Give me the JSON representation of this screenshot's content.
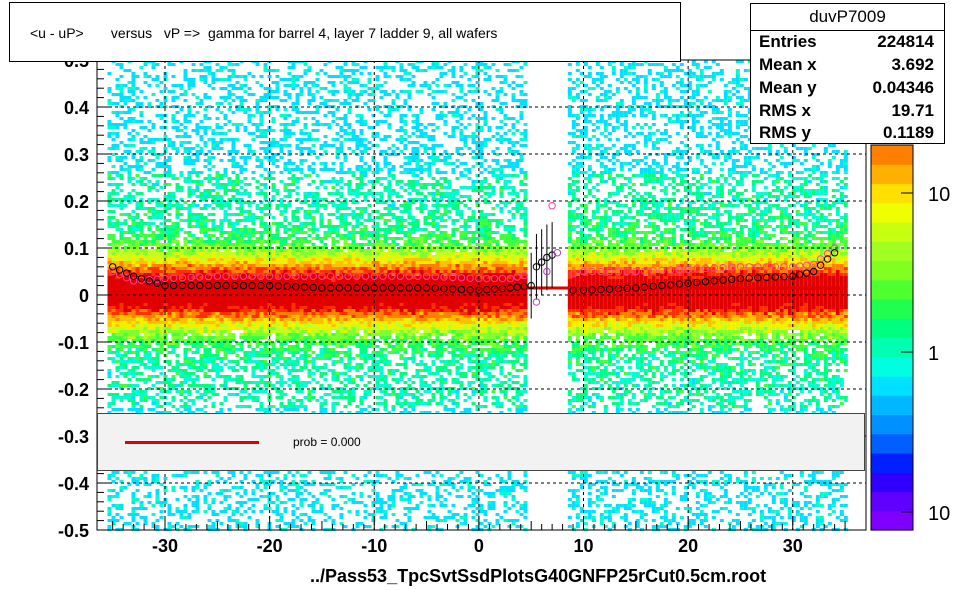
{
  "title": "<u - uP>       versus   vP =>  gamma for barrel 4, layer 7 ladder 9, all wafers",
  "stats": {
    "name": "duvP7009",
    "rows": [
      {
        "label": "Entries",
        "value": "224814"
      },
      {
        "label": "Mean x",
        "value": "3.692"
      },
      {
        "label": "Mean y",
        "value": "0.04346"
      },
      {
        "label": "RMS x",
        "value": "19.71"
      },
      {
        "label": "RMS y",
        "value": "0.1189"
      }
    ]
  },
  "legend": {
    "fit_label": "prob = 0.000"
  },
  "footer": "../Pass53_TpcSvtSsdPlotsG40GNFP25rCut0.5cm.root",
  "colors": {
    "fit": "#e00000",
    "profile_open": "#000000",
    "profile_pink": "#ff40a0",
    "profile_violet": "#b040d0"
  },
  "chart_data": {
    "type": "heatmap",
    "xlabel": "",
    "ylabel": "",
    "xlim": [
      -36.5,
      37.0
    ],
    "ylim": [
      -0.5,
      0.5
    ],
    "x_ticks": [
      -30,
      -20,
      -10,
      0,
      10,
      20,
      30
    ],
    "y_ticks": [
      -0.5,
      -0.4,
      -0.3,
      -0.2,
      -0.1,
      0,
      0.1,
      0.2,
      0.3,
      0.4,
      0.5
    ],
    "y_tick_labels": [
      "-0.5",
      "-0.4",
      "-0.3",
      "-0.2",
      "-0.1",
      "0",
      "0.1",
      "0.2",
      "0.3",
      "0.4",
      "0.5"
    ],
    "colorbar": {
      "scale": "log",
      "tick_labels": [
        "10",
        "1",
        "10"
      ]
    },
    "occupied_x_ranges": [
      [
        -35.5,
        4.5
      ],
      [
        8.5,
        35.0
      ]
    ],
    "occupied_y_range": [
      -0.5,
      0.5
    ],
    "fit": {
      "x_range": [
        -35.5,
        35.0
      ],
      "y": 0.015
    },
    "profile_black": {
      "x": [
        -35,
        -33,
        -30,
        -25,
        -20,
        -15,
        -10,
        -5,
        0,
        3,
        5,
        5.5,
        6,
        6.5,
        7,
        9,
        10,
        15,
        20,
        25,
        30,
        32,
        34
      ],
      "y": [
        0.06,
        0.04,
        0.02,
        0.02,
        0.02,
        0.015,
        0.015,
        0.015,
        0.01,
        0.015,
        0.02,
        0.06,
        0.07,
        0.08,
        0.085,
        0.01,
        0.01,
        0.015,
        0.025,
        0.035,
        0.04,
        0.05,
        0.09
      ]
    },
    "profile_pink": {
      "x": [
        -35,
        -33,
        -30,
        -25,
        -20,
        -15,
        -10,
        -5,
        0,
        3,
        5,
        7,
        9,
        10,
        15,
        20,
        25,
        30,
        32,
        34
      ],
      "y": [
        0.05,
        0.03,
        0.035,
        0.04,
        0.04,
        0.04,
        0.04,
        0.04,
        0.035,
        0.035,
        0.045,
        0.19,
        0.045,
        0.05,
        0.05,
        0.055,
        0.06,
        0.06,
        0.065,
        0.1
      ]
    },
    "profile_violet": {
      "x": [
        5.5,
        6.5,
        7.5
      ],
      "y": [
        -0.015,
        0.05,
        0.09
      ]
    }
  }
}
